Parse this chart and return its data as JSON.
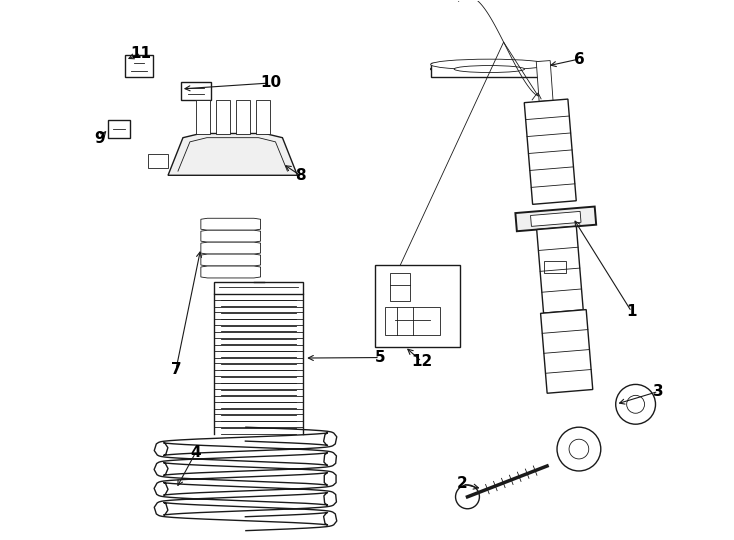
{
  "bg_color": "#ffffff",
  "line_color": "#1a1a1a",
  "label_color": "#000000",
  "fig_width": 7.34,
  "fig_height": 5.4,
  "dpi": 100,
  "lw": 1.0,
  "lw_thin": 0.6,
  "lw_thick": 1.4
}
